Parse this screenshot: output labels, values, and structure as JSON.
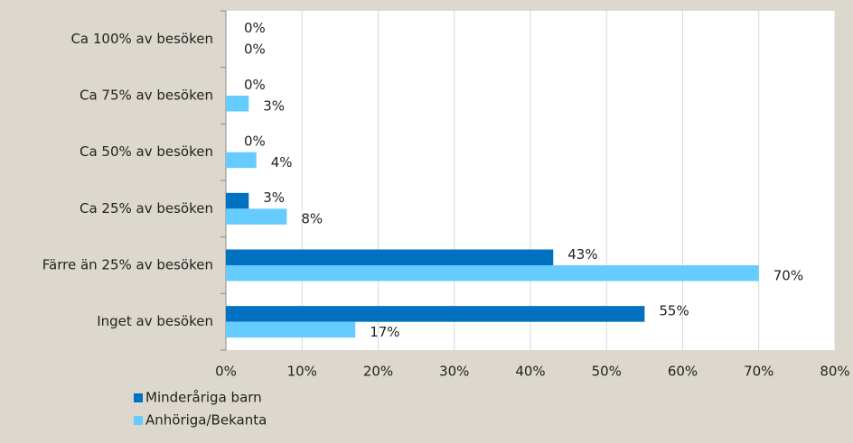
{
  "chart_data": {
    "type": "bar",
    "orientation": "horizontal",
    "categories": [
      "Ca 100% av besöken",
      "Ca 75% av besöken",
      "Ca 50% av besöken",
      "Ca 25% av besöken",
      "Färre än 25% av besöken",
      "Inget av besöken"
    ],
    "series": [
      {
        "name": "Minderåriga barn",
        "color": "#0070c0",
        "values": [
          0,
          0,
          0,
          3,
          43,
          55
        ],
        "value_labels": [
          "0%",
          "0%",
          "0%",
          "3%",
          "43%",
          "55%"
        ]
      },
      {
        "name": "Anhöriga/Bekanta",
        "color": "#66ccff",
        "values": [
          0,
          3,
          4,
          8,
          70,
          17
        ],
        "value_labels": [
          "0%",
          "3%",
          "4%",
          "8%",
          "70%",
          "17%"
        ]
      }
    ],
    "xlim": [
      0,
      80
    ],
    "xticks": [
      {
        "value": 0,
        "label": "0%"
      },
      {
        "value": 10,
        "label": "10%"
      },
      {
        "value": 20,
        "label": "20%"
      },
      {
        "value": 30,
        "label": "30%"
      },
      {
        "value": 40,
        "label": "40%"
      },
      {
        "value": 50,
        "label": "50%"
      },
      {
        "value": 60,
        "label": "60%"
      },
      {
        "value": 70,
        "label": "70%"
      },
      {
        "value": 80,
        "label": "80%"
      }
    ],
    "grid": true,
    "legend": "bottom-left"
  }
}
